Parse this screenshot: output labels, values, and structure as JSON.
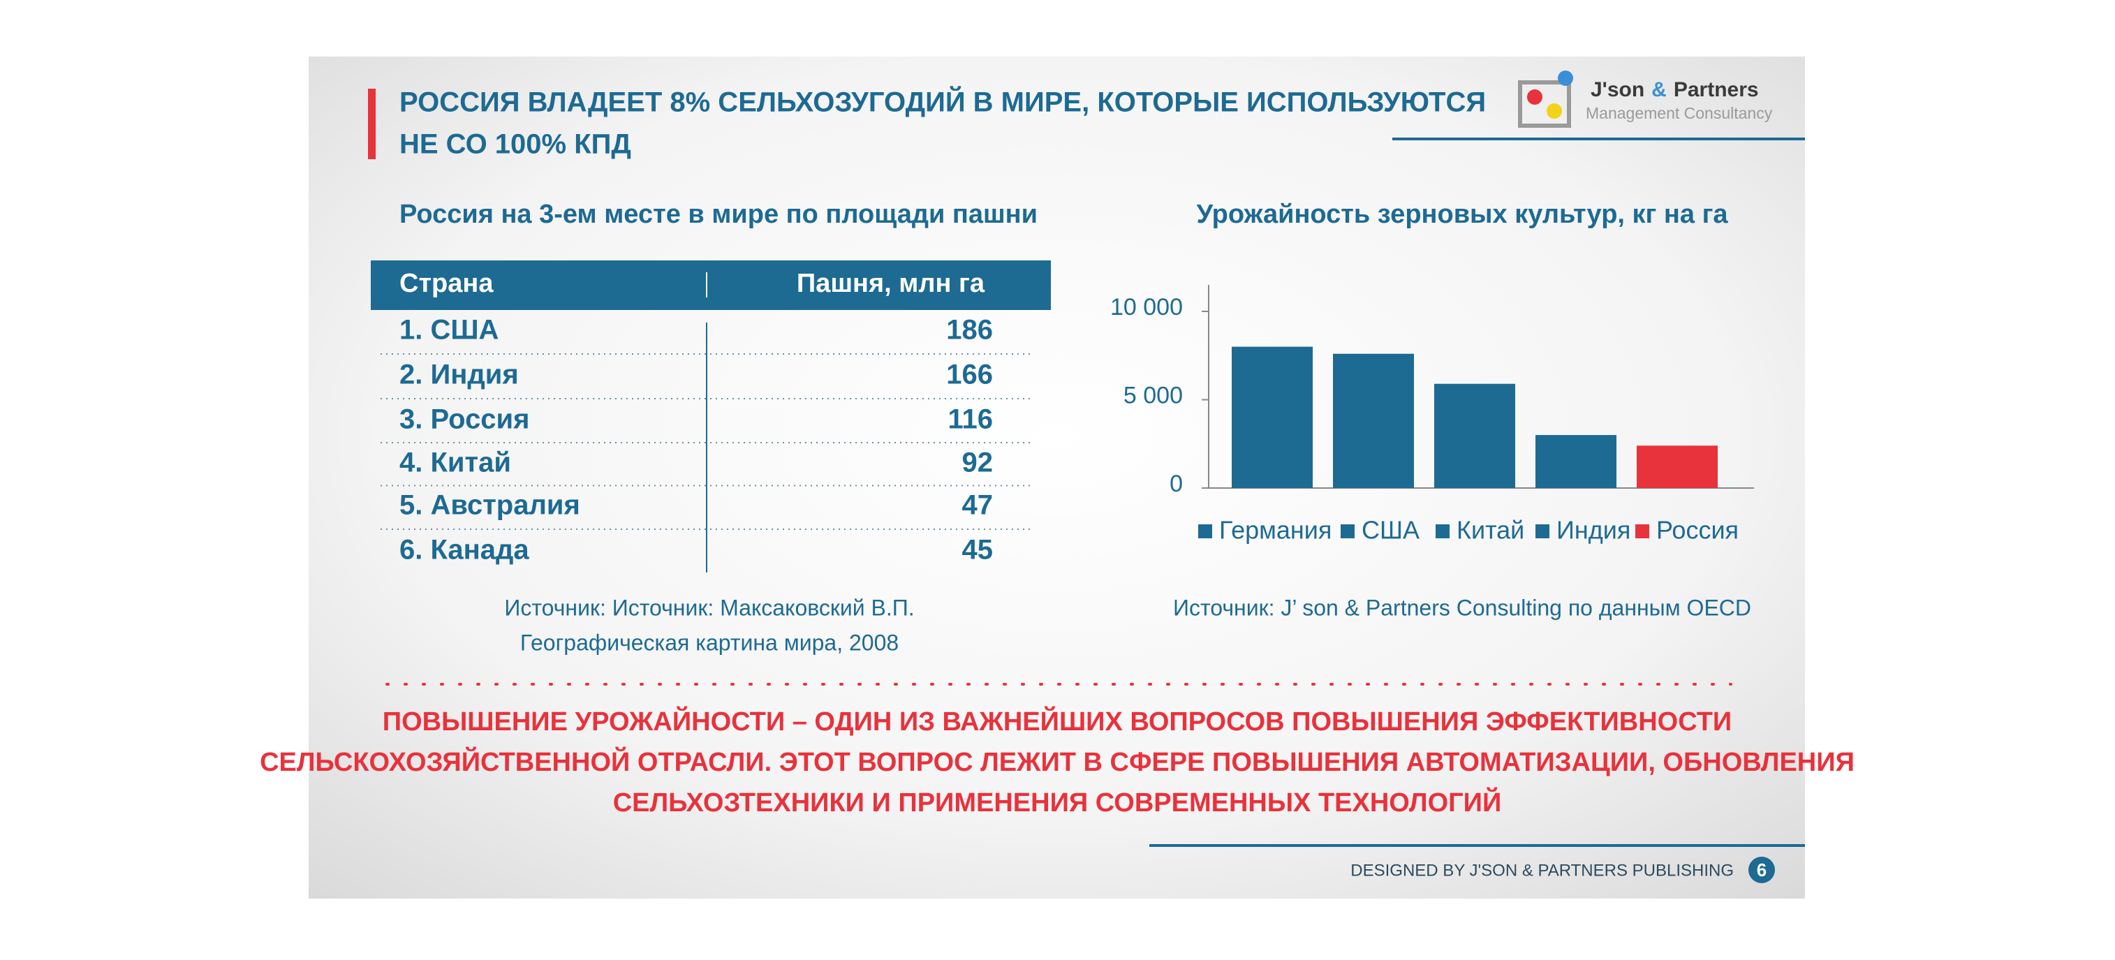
{
  "header": {
    "title_lines": [
      "РОССИЯ ВЛАДЕЕТ 8% СЕЛЬХОЗУГОДИЙ В МИРЕ, КОТОРЫЕ ИСПОЛЬЗУЮТСЯ",
      "НЕ СО 100% КПД"
    ],
    "logo": {
      "name": "J'son",
      "amp": "&",
      "partner": "Partners",
      "tagline": "Management Consultancy"
    }
  },
  "table": {
    "subtitle": "Россия на 3-ем месте в мире по площади пашни",
    "columns": [
      "Страна",
      "Пашня, млн га"
    ],
    "rows": [
      [
        "1. США",
        186
      ],
      [
        "2. Индия",
        166
      ],
      [
        "3. Россия",
        116
      ],
      [
        "4. Китай",
        92
      ],
      [
        "5. Австралия",
        47
      ],
      [
        "6. Канада",
        45
      ]
    ],
    "source_lines": [
      "Источник: Источник: Максаковский В.П.",
      "Географическая картина мира, 2008"
    ]
  },
  "chart_data": {
    "type": "bar",
    "title": "Урожайность зерновых культур, кг на га",
    "categories": [
      "Германия",
      "США",
      "Китай",
      "Индия",
      "Россия"
    ],
    "values": [
      8000,
      7600,
      5900,
      3000,
      2400
    ],
    "colors": [
      "#1d6a93",
      "#1d6a93",
      "#1d6a93",
      "#1d6a93",
      "#e8323c"
    ],
    "ylim": [
      0,
      11500
    ],
    "yticks": [
      0,
      {
        "value": 5000,
        "label": "5 000"
      },
      {
        "value": 10000,
        "label": "10 000"
      }
    ],
    "source": "Источник: J’ son & Partners Consulting по данным OECD"
  },
  "conclusion": {
    "lines": [
      "ПОВЫШЕНИЕ УРОЖАЙНОСТИ – ОДИН ИЗ ВАЖНЕЙШИХ ВОПРОСОВ ПОВЫШЕНИЯ ЭФФЕКТИВНОСТИ",
      "СЕЛЬСКОХОЗЯЙСТВЕННОЙ ОТРАСЛИ. ЭТОТ ВОПРОС ЛЕЖИТ В СФЕРЕ ПОВЫШЕНИЯ АВТОМАТИЗАЦИИ, ОБНОВЛЕНИЯ",
      "СЕЛЬХОЗТЕХНИКИ И ПРИМЕНЕНИЯ СОВРЕМЕННЫХ ТЕХНОЛОГИЙ"
    ]
  },
  "footer": {
    "credit": "DESIGNED BY J'SON & PARTNERS PUBLISHING",
    "page": 6
  }
}
